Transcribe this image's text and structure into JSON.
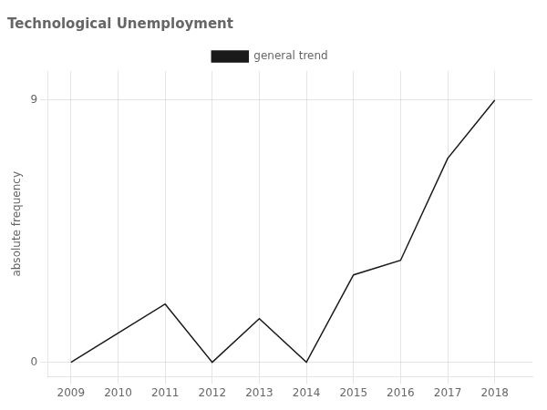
{
  "chart_data": {
    "type": "line",
    "title": "Technological Unemployment",
    "ylabel": "absolute frequency",
    "x": [
      2009,
      2010,
      2011,
      2012,
      2013,
      2014,
      2015,
      2016,
      2017,
      2018
    ],
    "series": [
      {
        "name": "general trend",
        "color": "#1a1a1a",
        "values": [
          0,
          1,
          2,
          0,
          1.5,
          0,
          3,
          3.5,
          7,
          9
        ]
      }
    ],
    "xlim": [
      2008.5,
      2018.8
    ],
    "ylim": [
      -0.5,
      10.0
    ],
    "xticks": [
      2009,
      2010,
      2011,
      2012,
      2013,
      2014,
      2015,
      2016,
      2017,
      2018
    ],
    "yticks": [
      0,
      9
    ],
    "grid": true,
    "legend": "top"
  }
}
